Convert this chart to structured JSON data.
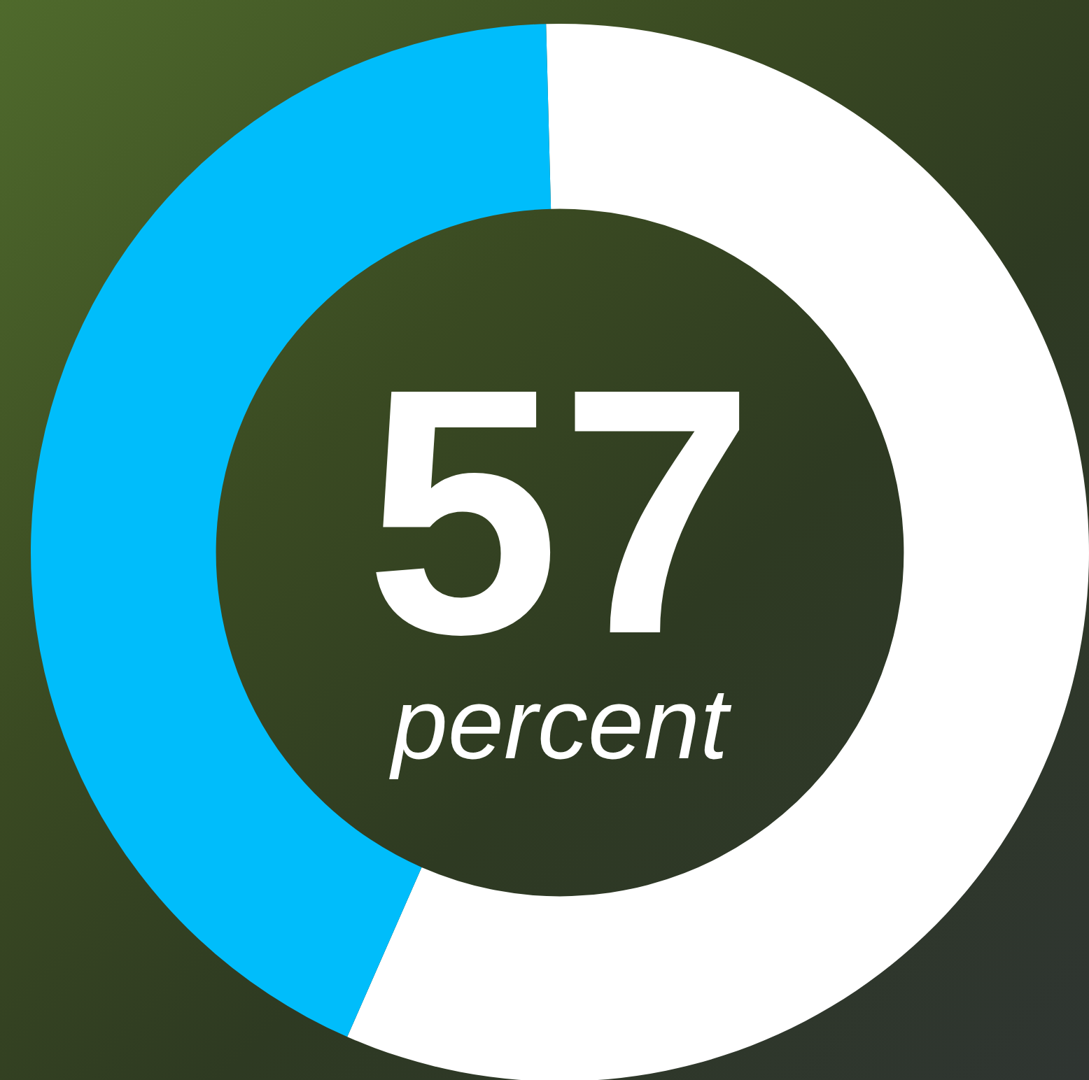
{
  "chart_data": {
    "type": "donut",
    "categories": [
      null,
      null
    ],
    "values": [
      57,
      43
    ],
    "colors": [
      "#ffffff",
      "#00bdfb"
    ],
    "value_labels": [
      "57",
      null
    ],
    "annotations": [
      "percent"
    ],
    "legend": false
  }
}
